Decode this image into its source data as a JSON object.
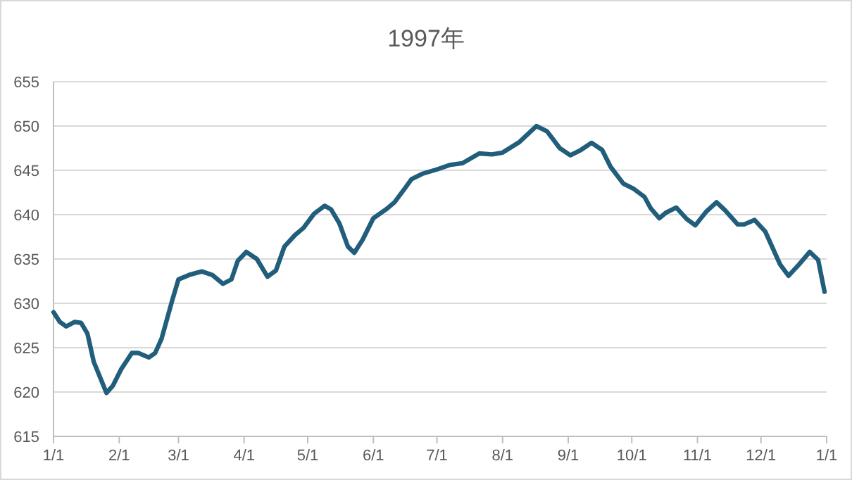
{
  "chart_data": {
    "type": "line",
    "title": "1997年",
    "x": [
      "1997-01-01",
      "1997-01-04",
      "1997-01-07",
      "1997-01-11",
      "1997-01-14",
      "1997-01-17",
      "1997-01-20",
      "1997-01-26",
      "1997-01-29",
      "1997-02-02",
      "1997-02-07",
      "1997-02-10",
      "1997-02-15",
      "1997-02-18",
      "1997-02-21",
      "1997-02-26",
      "1997-03-01",
      "1997-03-06",
      "1997-03-12",
      "1997-03-17",
      "1997-03-22",
      "1997-03-26",
      "1997-03-29",
      "1997-04-02",
      "1997-04-07",
      "1997-04-12",
      "1997-04-16",
      "1997-04-20",
      "1997-04-25",
      "1997-04-29",
      "1997-05-04",
      "1997-05-09",
      "1997-05-12",
      "1997-05-16",
      "1997-05-20",
      "1997-05-23",
      "1997-05-27",
      "1997-06-01",
      "1997-06-07",
      "1997-06-11",
      "1997-06-16",
      "1997-06-19",
      "1997-06-24",
      "1997-07-01",
      "1997-07-07",
      "1997-07-13",
      "1997-07-21",
      "1997-07-27",
      "1997-08-01",
      "1997-08-09",
      "1997-08-17",
      "1997-08-22",
      "1997-08-28",
      "1997-09-02",
      "1997-09-07",
      "1997-09-12",
      "1997-09-17",
      "1997-09-21",
      "1997-09-27",
      "1997-10-02",
      "1997-10-07",
      "1997-10-10",
      "1997-10-14",
      "1997-10-17",
      "1997-10-22",
      "1997-10-27",
      "1997-10-31",
      "1997-11-05",
      "1997-11-10",
      "1997-11-14",
      "1997-11-20",
      "1997-11-23",
      "1997-11-28",
      "1997-12-03",
      "1997-12-10",
      "1997-12-14",
      "1997-12-19",
      "1997-12-24",
      "1997-12-28",
      "1997-12-31"
    ],
    "series": [
      {
        "color": "#215e7c",
        "values": [
          629.0,
          627.9,
          627.4,
          627.9,
          627.8,
          626.6,
          623.4,
          619.9,
          620.7,
          622.6,
          624.4,
          624.4,
          623.9,
          624.4,
          626.0,
          630.3,
          632.7,
          633.2,
          633.6,
          633.2,
          632.2,
          632.7,
          634.8,
          635.8,
          635.0,
          633.0,
          633.7,
          636.4,
          637.7,
          638.5,
          640.1,
          641.0,
          640.6,
          639.0,
          636.4,
          635.7,
          637.2,
          639.6,
          640.6,
          641.4,
          643.0,
          644.0,
          644.6,
          645.1,
          645.6,
          645.8,
          646.9,
          646.8,
          647.0,
          648.2,
          650.0,
          649.4,
          647.5,
          646.7,
          647.3,
          648.1,
          647.3,
          645.4,
          643.5,
          642.9,
          642.0,
          640.7,
          639.6,
          640.2,
          640.8,
          639.5,
          638.8,
          640.3,
          641.4,
          640.5,
          638.9,
          638.9,
          639.4,
          638.1,
          634.4,
          633.1,
          634.4,
          635.8,
          634.9,
          631.3
        ]
      }
    ],
    "xlim": [
      "1997-01-01",
      "1998-01-01"
    ],
    "xticks": [
      {
        "value": "1997-01-01",
        "label": "1/1"
      },
      {
        "value": "1997-02-01",
        "label": "2/1"
      },
      {
        "value": "1997-03-01",
        "label": "3/1"
      },
      {
        "value": "1997-04-01",
        "label": "4/1"
      },
      {
        "value": "1997-05-01",
        "label": "5/1"
      },
      {
        "value": "1997-06-01",
        "label": "6/1"
      },
      {
        "value": "1997-07-01",
        "label": "7/1"
      },
      {
        "value": "1997-08-01",
        "label": "8/1"
      },
      {
        "value": "1997-09-01",
        "label": "9/1"
      },
      {
        "value": "1997-10-01",
        "label": "10/1"
      },
      {
        "value": "1997-11-01",
        "label": "11/1"
      },
      {
        "value": "1997-12-01",
        "label": "12/1"
      },
      {
        "value": "1998-01-01",
        "label": "1/1"
      }
    ],
    "ylim": [
      615,
      655
    ],
    "yticks": [
      615,
      620,
      625,
      630,
      635,
      640,
      645,
      650,
      655
    ],
    "grid": "y",
    "line_style": "solid"
  }
}
